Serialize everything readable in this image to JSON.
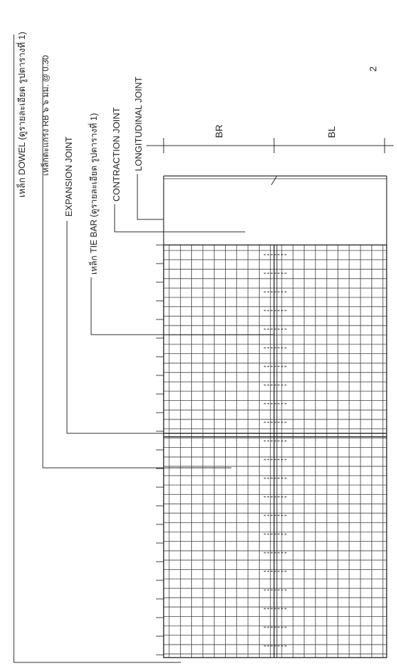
{
  "page_number": "2",
  "labels": {
    "dowel": "เหล็ก DOWEL (ดูรายละเอียด รูปตารางที่ 1)",
    "mesh": "เหล็กตะแกรง RB ๖ ๖ มม. @ 0.30",
    "expansion": "EXPANSION JOINT",
    "tie_bar": "เหล็ก TIE BAR (ดูรายละเอียด รูปตารางที่ 1)",
    "contraction": "CONTRACTION JOINT",
    "longitudinal": "LONGITUDINAL JOINT",
    "br": "BR",
    "bl": "BL"
  },
  "colors": {
    "ink": "#2a2a2a",
    "paper": "#ffffff"
  }
}
